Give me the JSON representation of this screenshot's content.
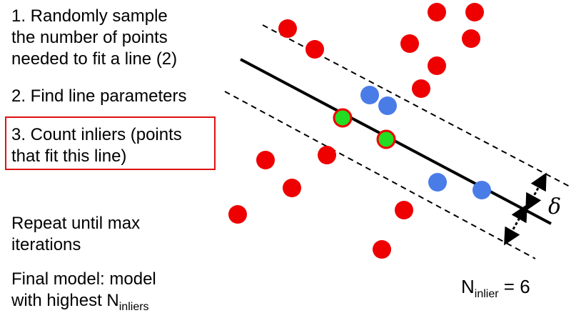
{
  "steps": {
    "step1_lines": [
      "1. Randomly sample",
      "the number of points",
      "needed to fit a line (2)"
    ],
    "step2": "2. Find line parameters",
    "step3_lines": [
      "3. Count inliers (points",
      "that fit this line)"
    ],
    "repeat_lines": [
      "Repeat until max",
      "iterations"
    ],
    "final_line1": "Final model: model",
    "final_line2_prefix": "with highest N",
    "final_line2_sub": "inliers"
  },
  "count": {
    "prefix": "N",
    "sub": "inlier",
    "suffix": " = 6"
  },
  "delta_symbol": "δ",
  "colors": {
    "outlier": "#ee0000",
    "inlier": "#4a7ce8",
    "sampled_fill": "#22dd22",
    "sampled_stroke": "#ee0000",
    "highlight_box": "#e01010"
  }
}
